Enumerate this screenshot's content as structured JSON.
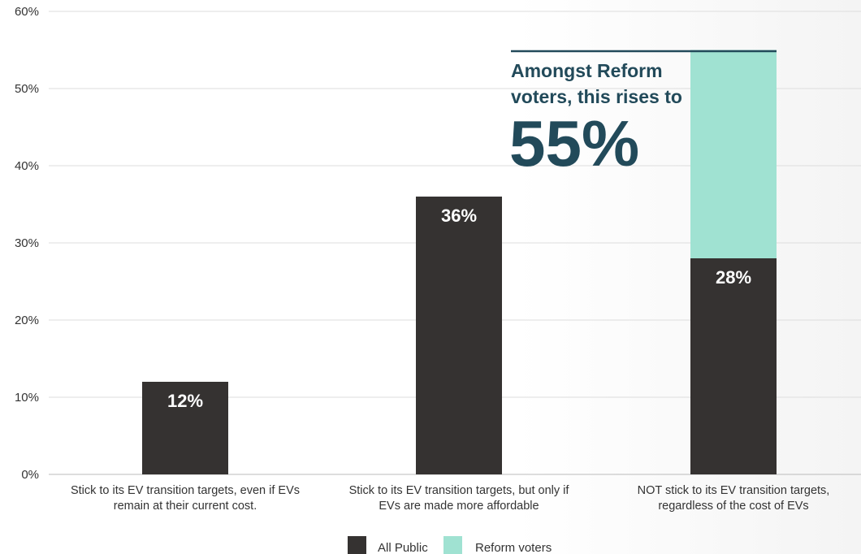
{
  "chart_data": {
    "type": "bar",
    "categories": [
      "Stick to its EV transition targets, even if EVs remain at their current cost.",
      "Stick to its EV transition targets, but only if EVs are made more affordable",
      "NOT stick to its EV transition targets, regardless of the cost of EVs"
    ],
    "category_lines": [
      [
        "Stick to its EV transition targets, even if EVs",
        "remain at their current cost."
      ],
      [
        "Stick to its EV transition targets, but only if",
        "EVs are made more affordable"
      ],
      [
        "NOT stick to its EV transition targets,",
        "regardless of the cost of EVs"
      ]
    ],
    "series": [
      {
        "name": "All Public",
        "values": [
          12,
          36,
          28
        ],
        "labels": [
          "12%",
          "36%",
          "28%"
        ],
        "color": "#353231"
      },
      {
        "name": "Reform voters",
        "values": [
          null,
          null,
          55
        ],
        "color": "#a0e2d2"
      }
    ],
    "ylim": [
      0,
      60
    ],
    "yticks": [
      0,
      10,
      20,
      30,
      40,
      50,
      60
    ],
    "ytick_labels": [
      "0%",
      "10%",
      "20%",
      "30%",
      "40%",
      "50%",
      "60%"
    ],
    "grid": true,
    "legend_position": "bottom-center",
    "annotation": {
      "lines": [
        "Amongst Reform",
        "voters, this rises to"
      ],
      "big": "55%",
      "color": "#224a5a"
    }
  }
}
